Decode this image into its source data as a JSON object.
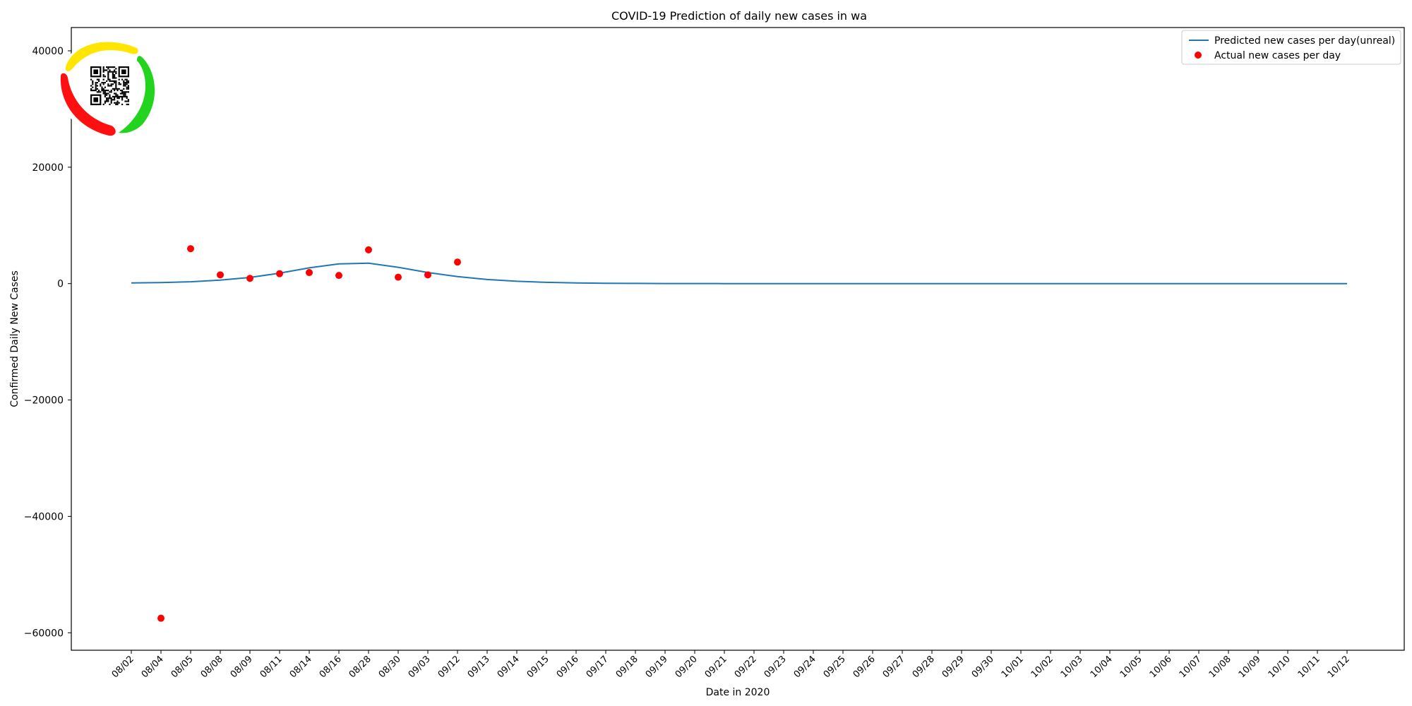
{
  "chart_data": {
    "type": "line",
    "title": "COVID-19 Prediction of daily new cases in wa",
    "xlabel": "Date in 2020",
    "ylabel": "Confirmed Daily New Cases",
    "ylim": [
      -63000,
      44000
    ],
    "yticks": [
      -60000,
      -40000,
      -20000,
      0,
      20000,
      40000
    ],
    "ytick_labels": [
      "−60000",
      "−40000",
      "−20000",
      "0",
      "20000",
      "40000"
    ],
    "categories": [
      "08/02",
      "08/04",
      "08/05",
      "08/08",
      "08/09",
      "08/11",
      "08/14",
      "08/16",
      "08/28",
      "08/30",
      "09/03",
      "09/12",
      "09/13",
      "09/14",
      "09/15",
      "09/16",
      "09/17",
      "09/18",
      "09/19",
      "09/20",
      "09/21",
      "09/22",
      "09/23",
      "09/24",
      "09/25",
      "09/26",
      "09/27",
      "09/28",
      "09/29",
      "09/30",
      "10/01",
      "10/02",
      "10/03",
      "10/04",
      "10/05",
      "10/06",
      "10/07",
      "10/08",
      "10/09",
      "10/10",
      "10/11",
      "10/12"
    ],
    "series": [
      {
        "name": "Predicted new cases per day(unreal)",
        "type": "line",
        "color": "#1f77b4",
        "values": [
          120,
          180,
          320,
          600,
          1050,
          1800,
          2700,
          3400,
          3500,
          2800,
          1900,
          1200,
          700,
          400,
          220,
          120,
          60,
          30,
          15,
          8,
          5,
          3,
          2,
          1,
          1,
          0,
          0,
          0,
          0,
          0,
          0,
          0,
          0,
          0,
          0,
          0,
          0,
          0,
          0,
          0,
          0,
          0
        ]
      },
      {
        "name": "Actual new cases per day",
        "type": "scatter",
        "color": "#ff0000",
        "points": [
          {
            "x": "08/04",
            "y": -57500
          },
          {
            "x": "08/05",
            "y": 6000
          },
          {
            "x": "08/08",
            "y": 1500
          },
          {
            "x": "08/09",
            "y": 900
          },
          {
            "x": "08/11",
            "y": 1700
          },
          {
            "x": "08/14",
            "y": 1900
          },
          {
            "x": "08/16",
            "y": 1400
          },
          {
            "x": "08/28",
            "y": 5800
          },
          {
            "x": "08/30",
            "y": 1100
          },
          {
            "x": "09/03",
            "y": 1500
          },
          {
            "x": "09/12",
            "y": 3700
          }
        ]
      }
    ],
    "legend": {
      "position": "top-right",
      "entries": [
        "Predicted new cases per day(unreal)",
        "Actual new cases per day"
      ]
    },
    "grid": false
  },
  "logo": {
    "name": "circular-logo-with-qr-code",
    "colors": [
      "#ffe600",
      "#22d41e",
      "#ff0000"
    ]
  }
}
